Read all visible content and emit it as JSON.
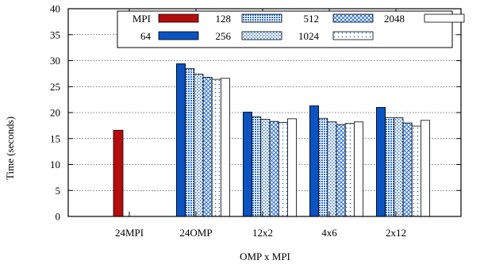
{
  "chart_data": {
    "type": "bar",
    "title": "",
    "xlabel": "OMP x MPI",
    "ylabel": "Time (seconds)",
    "ylim": [
      0,
      40
    ],
    "yticks": [
      "0",
      "5",
      "10",
      "15",
      "20",
      "25",
      "30",
      "35",
      "40"
    ],
    "grid": true,
    "legend_position": "top",
    "categories": [
      "24MPI",
      "24OMP",
      "12x2",
      "4x6",
      "2x12"
    ],
    "series": [
      {
        "name": "MPI",
        "values": [
          16.6,
          null,
          null,
          null,
          null
        ],
        "color": "#b50d0d",
        "pattern": "solid"
      },
      {
        "name": "64",
        "values": [
          null,
          29.4,
          20.1,
          21.3,
          21.0
        ],
        "color": "#0b53c1",
        "pattern": "solid"
      },
      {
        "name": "128",
        "values": [
          null,
          28.5,
          19.2,
          18.9,
          19.0
        ],
        "color": "#2a6fd6",
        "pattern": "dense-dots"
      },
      {
        "name": "256",
        "values": [
          null,
          27.4,
          18.7,
          18.2,
          19.0
        ],
        "color": "#2a6fd6",
        "pattern": "dots"
      },
      {
        "name": "512",
        "values": [
          null,
          26.8,
          18.3,
          17.7,
          18.0
        ],
        "color": "#2a6fd6",
        "pattern": "crosshatch"
      },
      {
        "name": "1024",
        "values": [
          null,
          26.4,
          18.1,
          17.9,
          17.4
        ],
        "color": "#2a6fd6",
        "pattern": "sparse-dots"
      },
      {
        "name": "2048",
        "values": [
          null,
          26.6,
          18.8,
          18.2,
          18.5
        ],
        "color": "#ffffff",
        "pattern": "none"
      }
    ]
  }
}
